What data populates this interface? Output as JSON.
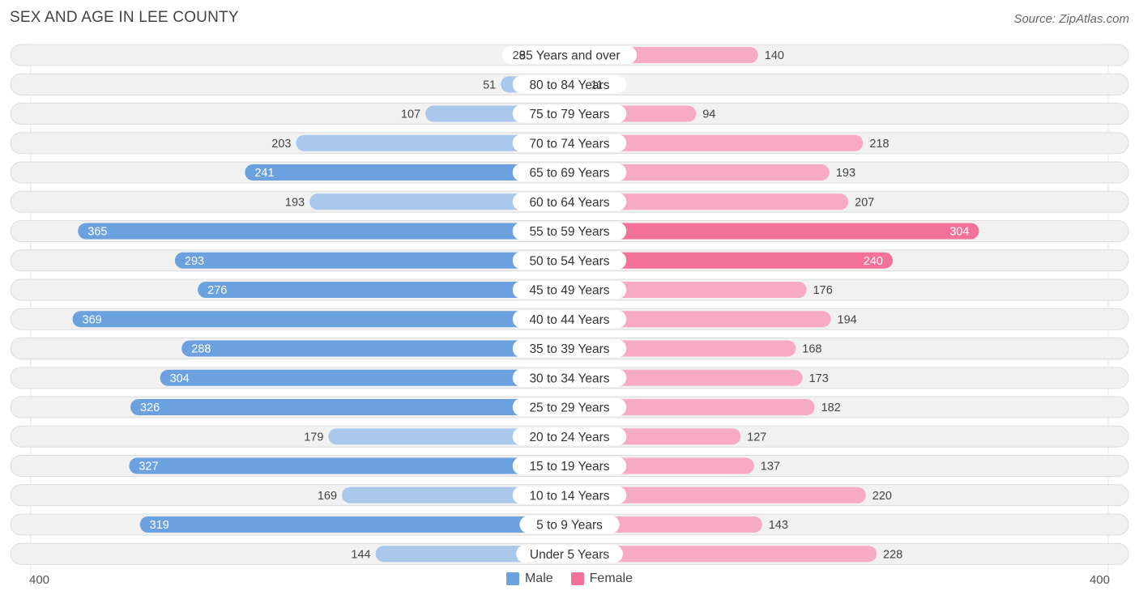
{
  "title": "SEX AND AGE IN LEE COUNTY",
  "source": "Source: ZipAtlas.com",
  "colors": {
    "male": "#6aa1de",
    "male_light": "#a9c8ec",
    "female": "#f4719a",
    "female_light": "#f7aac3",
    "track": "#f1f1f1",
    "track_border": "#dcdcdc"
  },
  "axis": {
    "left_label": "400",
    "right_label": "400"
  },
  "legend": {
    "male_label": "Male",
    "female_label": "Female"
  },
  "chart_data": {
    "type": "bar",
    "orientation": "horizontal-diverging",
    "xlim": [
      -400,
      400
    ],
    "categories": [
      "85 Years and over",
      "80 to 84 Years",
      "75 to 79 Years",
      "70 to 74 Years",
      "65 to 69 Years",
      "60 to 64 Years",
      "55 to 59 Years",
      "50 to 54 Years",
      "45 to 49 Years",
      "40 to 44 Years",
      "35 to 39 Years",
      "30 to 34 Years",
      "25 to 29 Years",
      "20 to 24 Years",
      "15 to 19 Years",
      "10 to 14 Years",
      "5 to 9 Years",
      "Under 5 Years"
    ],
    "series": [
      {
        "name": "Male",
        "values": [
          29,
          51,
          107,
          203,
          241,
          193,
          365,
          293,
          276,
          369,
          288,
          304,
          326,
          179,
          327,
          169,
          319,
          144
        ]
      },
      {
        "name": "Female",
        "values": [
          140,
          11,
          94,
          218,
          193,
          207,
          304,
          240,
          176,
          194,
          168,
          173,
          182,
          127,
          137,
          220,
          143,
          228
        ]
      }
    ],
    "legend_position": "bottom-center"
  }
}
